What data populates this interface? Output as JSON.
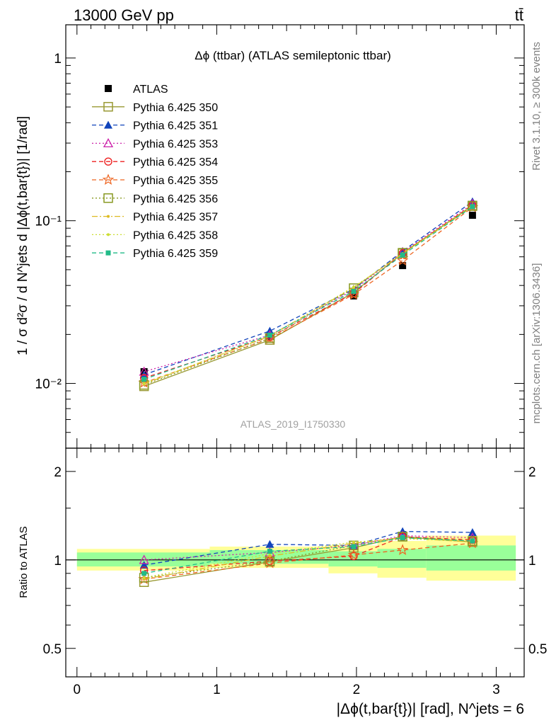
{
  "header": {
    "left": "13000 GeV pp",
    "right": "tt̄"
  },
  "side_text": {
    "rivet": "Rivet 3.1.10, ≥ 300k events",
    "mcplots": "mcplots.cern.ch [arXiv:1306.3436]"
  },
  "watermark": "ATLAS_2019_I1750330",
  "chart_data": [
    {
      "type": "line",
      "panel": "main",
      "title": "Δϕ (ttbar) (ATLAS semileptonic ttbar)",
      "ylabel": "1 / σ d²σ / d N^jets d |Δϕ(t,bar{t})| [1/rad]",
      "yscale": "log",
      "ylim": [
        0.004,
        1.6
      ],
      "xlim": [
        -0.08,
        3.2
      ],
      "y_tick_labels": [
        "10⁻²",
        "10⁻¹",
        "1"
      ],
      "y_tick_values": [
        0.01,
        0.1,
        1
      ],
      "legend_position": "top-left",
      "x": [
        0.48,
        1.38,
        1.98,
        2.33,
        2.83
      ],
      "series": [
        {
          "name": "ATLAS",
          "color": "#000000",
          "marker": "square-filled",
          "values": [
            0.0118,
            0.0195,
            0.0345,
            0.053,
            0.108
          ]
        },
        {
          "name": "Pythia 6.425 350",
          "color": "#999933",
          "marker": "square-open",
          "line": "solid",
          "values": [
            0.0096,
            0.0185,
            0.0362,
            0.063,
            0.124
          ]
        },
        {
          "name": "Pythia 6.425 351",
          "color": "#1144bb",
          "marker": "triangle-filled",
          "line": "dashed",
          "values": [
            0.0113,
            0.021,
            0.038,
            0.065,
            0.131
          ]
        },
        {
          "name": "Pythia 6.425 353",
          "color": "#cc22aa",
          "marker": "triangle-open",
          "line": "dotted",
          "values": [
            0.0118,
            0.0198,
            0.0375,
            0.064,
            0.127
          ]
        },
        {
          "name": "Pythia 6.425 354",
          "color": "#ee2222",
          "marker": "circle-open",
          "line": "dashed",
          "values": [
            0.0108,
            0.0193,
            0.0358,
            0.063,
            0.125
          ]
        },
        {
          "name": "Pythia 6.425 355",
          "color": "#ee6622",
          "marker": "star-open",
          "line": "dashed",
          "values": [
            0.0101,
            0.0188,
            0.0352,
            0.057,
            0.121
          ]
        },
        {
          "name": "Pythia 6.425 356",
          "color": "#889922",
          "marker": "square-open",
          "line": "dotted",
          "values": [
            0.0098,
            0.019,
            0.0385,
            0.0635,
            0.123
          ]
        },
        {
          "name": "Pythia 6.425 357",
          "color": "#ddbb22",
          "marker": "dot",
          "line": "dashdot",
          "values": [
            0.0099,
            0.0196,
            0.0388,
            0.0628,
            0.122
          ]
        },
        {
          "name": "Pythia 6.425 358",
          "color": "#ccdd33",
          "marker": "dot",
          "line": "dotted",
          "values": [
            0.01,
            0.0195,
            0.0392,
            0.0625,
            0.124
          ]
        },
        {
          "name": "Pythia 6.425 359",
          "color": "#22bb88",
          "marker": "square-small",
          "line": "dashed",
          "values": [
            0.0106,
            0.0198,
            0.0368,
            0.0615,
            0.122
          ]
        }
      ]
    },
    {
      "type": "line",
      "panel": "ratio",
      "ylabel": "Ratio to ATLAS",
      "xlabel": "|Δϕ(t,bar{t})| [rad], N^jets = 6",
      "ylim": [
        0.4,
        2.4
      ],
      "xlim": [
        -0.08,
        3.2
      ],
      "x_tick_labels": [
        "0",
        "1",
        "2",
        "3"
      ],
      "x_tick_values": [
        0,
        1,
        2,
        3
      ],
      "y_tick_labels": [
        "0.5",
        "1",
        "2"
      ],
      "y_tick_values": [
        0.5,
        1,
        2
      ],
      "uncertainty_bins": {
        "edges": [
          0,
          0.95,
          1.8,
          2.15,
          2.5,
          3.14
        ],
        "stat_band": [
          [
            0.95,
            1.06
          ],
          [
            0.97,
            1.08
          ],
          [
            0.95,
            1.07
          ],
          [
            0.94,
            1.09
          ],
          [
            0.92,
            1.12
          ]
        ],
        "total_band": [
          [
            0.92,
            1.09
          ],
          [
            0.94,
            1.11
          ],
          [
            0.9,
            1.12
          ],
          [
            0.87,
            1.16
          ],
          [
            0.85,
            1.21
          ]
        ],
        "stat_color": "#99ff99",
        "total_color": "#ffff99"
      },
      "x": [
        0.48,
        1.38,
        1.98,
        2.33,
        2.83
      ],
      "series": [
        {
          "name": "Pythia 6.425 350",
          "color": "#999933",
          "marker": "square-open",
          "line": "solid",
          "values": [
            0.84,
            0.985,
            1.1,
            1.2,
            1.15
          ]
        },
        {
          "name": "Pythia 6.425 351",
          "color": "#1144bb",
          "marker": "triangle-filled",
          "line": "dashed",
          "values": [
            0.96,
            1.13,
            1.12,
            1.25,
            1.24
          ]
        },
        {
          "name": "Pythia 6.425 353",
          "color": "#cc22aa",
          "marker": "triangle-open",
          "line": "dotted",
          "values": [
            1.0,
            1.06,
            1.12,
            1.21,
            1.19
          ]
        },
        {
          "name": "Pythia 6.425 354",
          "color": "#ee2222",
          "marker": "circle-open",
          "line": "dashed",
          "values": [
            0.92,
            0.99,
            1.03,
            1.2,
            1.17
          ]
        },
        {
          "name": "Pythia 6.425 355",
          "color": "#ee6622",
          "marker": "star-open",
          "line": "dashed",
          "values": [
            0.86,
            0.975,
            1.04,
            1.08,
            1.14
          ]
        },
        {
          "name": "Pythia 6.425 356",
          "color": "#889922",
          "marker": "square-open",
          "line": "dotted",
          "values": [
            0.87,
            0.99,
            1.12,
            1.2,
            1.16
          ]
        },
        {
          "name": "Pythia 6.425 357",
          "color": "#ddbb22",
          "marker": "dot",
          "line": "dashdot",
          "values": [
            0.86,
            1.03,
            1.14,
            1.19,
            1.15
          ]
        },
        {
          "name": "Pythia 6.425 358",
          "color": "#ccdd33",
          "marker": "dot",
          "line": "dotted",
          "values": [
            0.87,
            1.05,
            1.15,
            1.18,
            1.16
          ]
        },
        {
          "name": "Pythia 6.425 359",
          "color": "#22bb88",
          "marker": "square-small",
          "line": "dashed",
          "values": [
            0.9,
            1.07,
            1.11,
            1.19,
            1.16
          ]
        }
      ]
    }
  ]
}
